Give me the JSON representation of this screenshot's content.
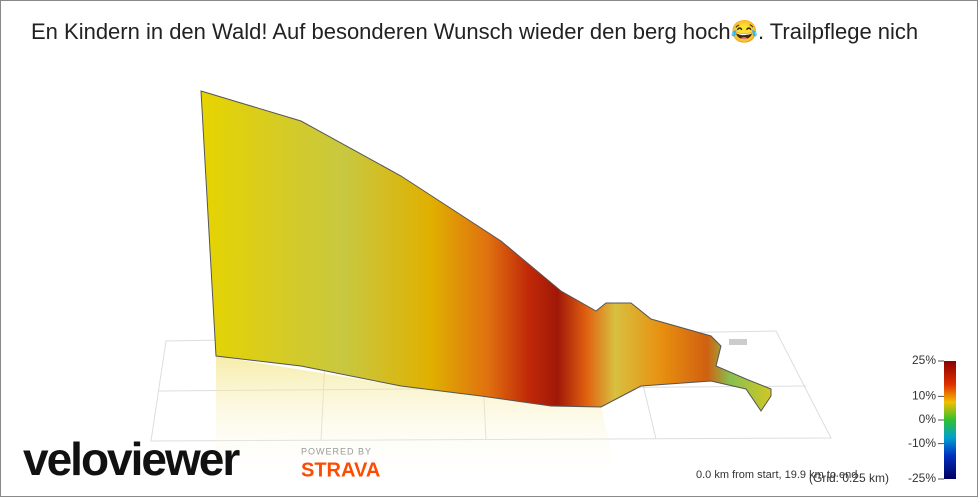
{
  "header": {
    "title": "En Kindern in den Wald! Auf besonderen Wunsch wieder den berg hoch😂. Trailpflege nich"
  },
  "legend": {
    "ticks": [
      {
        "value": 25,
        "label": "25%"
      },
      {
        "value": 10,
        "label": "10%"
      },
      {
        "value": 0,
        "label": "0%"
      },
      {
        "value": -10,
        "label": "-10%"
      },
      {
        "value": -25,
        "label": "-25%"
      }
    ]
  },
  "footer": {
    "position": "0.0 km from start, 19.9 km to end",
    "grid": "(Grid: 0.25 km)"
  },
  "branding": {
    "logo": "veloviewer",
    "powered": "POWERED BY",
    "strava": "STRAVA"
  }
}
